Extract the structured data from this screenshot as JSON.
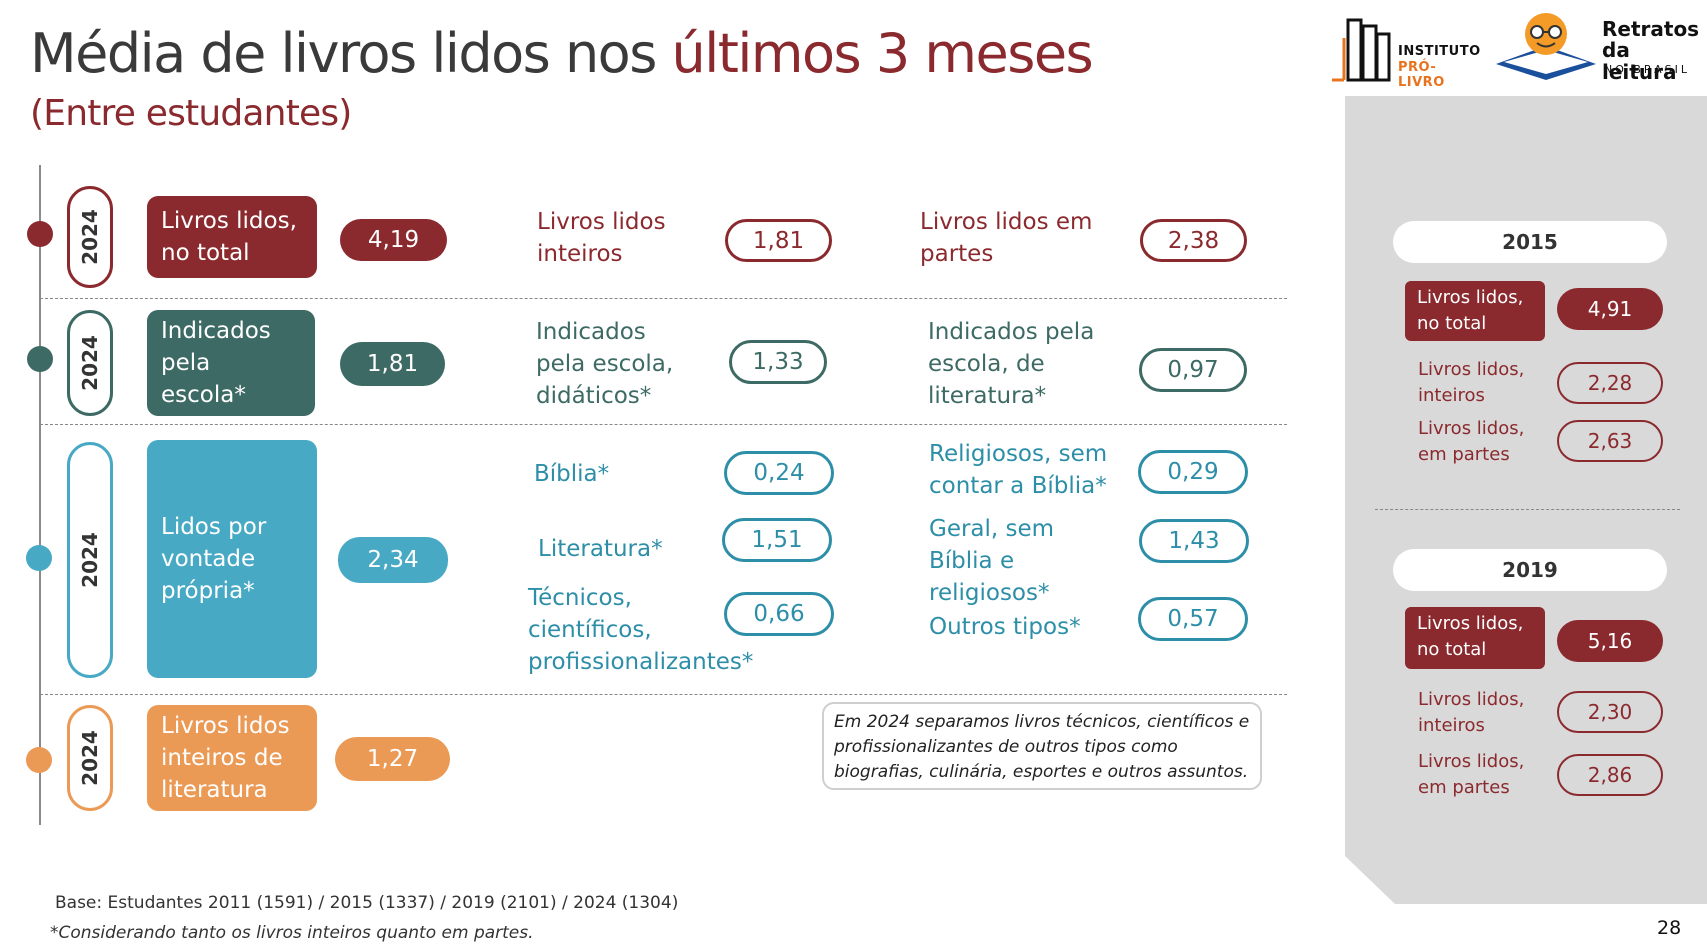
{
  "header": {
    "title_main": "Média de livros lidos nos ",
    "title_accent": "últimos 3 meses",
    "subtitle": "(Entre estudantes)"
  },
  "logos": {
    "instituto_line1": "INSTITUTO",
    "instituto_line2": "PRÓ-LIVRO",
    "retratos_line1": "Retratos",
    "retratos_line2": "da leitura",
    "retratos_line3": "NO BRASIL"
  },
  "colors": {
    "red": "#8b2a2e",
    "dark_teal": "#3d6a64",
    "blue": "#48a9c5",
    "orange": "#eb9a55"
  },
  "rows": [
    {
      "year": "2024",
      "category": "Livros lidos, no total",
      "value": "4,19",
      "sub": [
        {
          "label": "Livros lidos inteiros",
          "value": "1,81"
        },
        {
          "label": "Livros lidos em partes",
          "value": "2,38"
        }
      ]
    },
    {
      "year": "2024",
      "category": "Indicados pela escola*",
      "value": "1,81",
      "sub": [
        {
          "label": "Indicados pela escola, didáticos*",
          "value": "1,33"
        },
        {
          "label": "Indicados pela escola, de literatura*",
          "value": "0,97"
        }
      ]
    },
    {
      "year": "2024",
      "category": "Lidos por vontade própria*",
      "value": "2,34",
      "sub": [
        {
          "label": "Bíblia*",
          "value": "0,24"
        },
        {
          "label": "Religiosos, sem contar a Bíblia*",
          "value": "0,29"
        },
        {
          "label": "Literatura*",
          "value": "1,51"
        },
        {
          "label": "Geral, sem Bíblia e religiosos*",
          "value": "1,43"
        },
        {
          "label": "Técnicos, científicos, profissionalizantes*",
          "value": "0,66"
        },
        {
          "label": "Outros tipos*",
          "value": "0,57"
        }
      ]
    },
    {
      "year": "2024",
      "category": "Livros lidos inteiros de literatura",
      "value": "1,27"
    }
  ],
  "note": "Em 2024 separamos livros técnicos, científicos e profissionalizantes de outros tipos como biografias, culinária, esportes e outros assuntos.",
  "side_panel": [
    {
      "year": "2015",
      "total_label": "Livros lidos, no total",
      "total_value": "4,91",
      "inteiros_label": "Livros lidos, inteiros",
      "inteiros_value": "2,28",
      "partes_label": "Livros lidos, em partes",
      "partes_value": "2,63"
    },
    {
      "year": "2019",
      "total_label": "Livros lidos, no total",
      "total_value": "5,16",
      "inteiros_label": "Livros lidos, inteiros",
      "inteiros_value": "2,30",
      "partes_label": "Livros lidos, em partes",
      "partes_value": "2,86"
    }
  ],
  "footer": {
    "base": "Base: Estudantes 2011 (1591) / 2015 (1337) / 2019 (2101) / 2024 (1304)",
    "footnote": "*Considerando tanto os livros inteiros quanto em partes.",
    "page_number": "28"
  }
}
